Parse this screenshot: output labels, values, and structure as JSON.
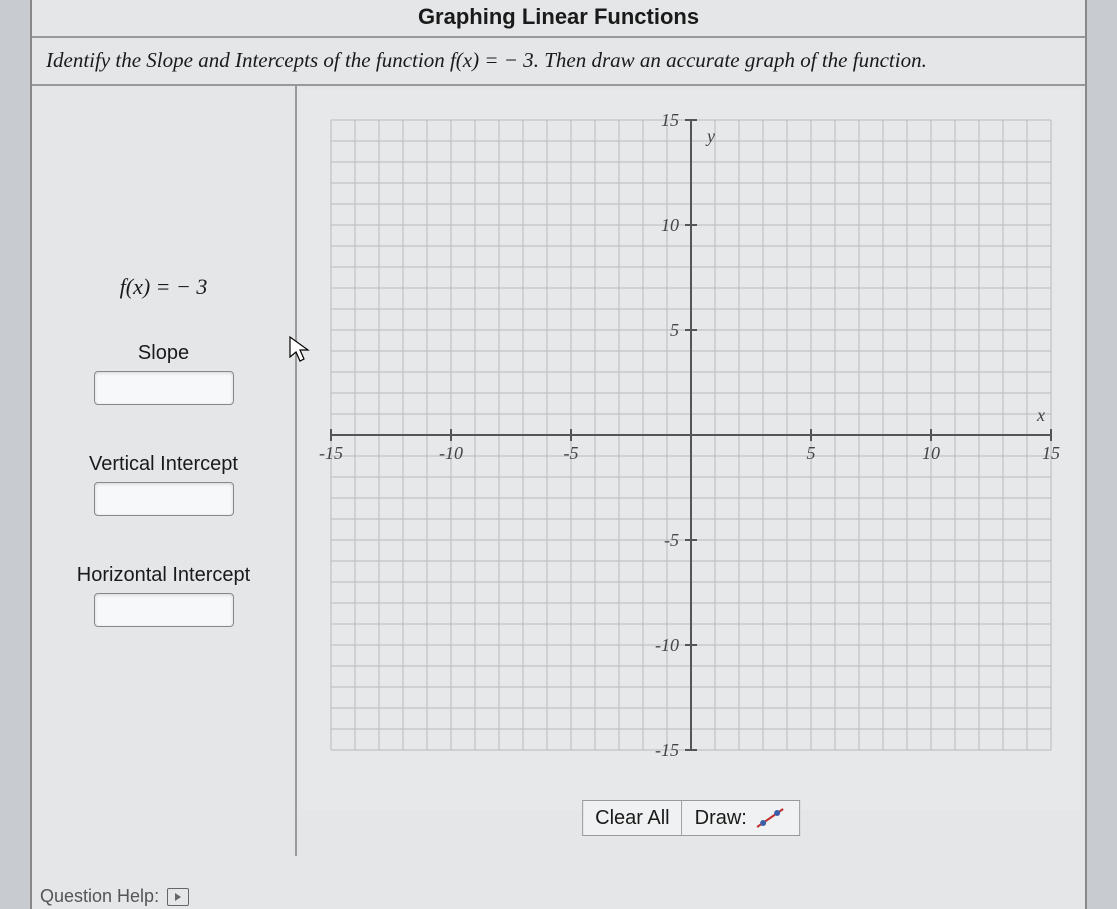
{
  "title": "Graphing Linear Functions",
  "instructions": {
    "prefix": "Identify the Slope and Intercepts of the function ",
    "func_lhs": "f(x) = ",
    "func_rhs": " − 3",
    "suffix": ". Then draw an accurate graph of the function."
  },
  "left": {
    "function_display": "f(x) = − 3",
    "slope_label": "Slope",
    "vint_label": "Vertical Intercept",
    "hint_label": "Horizontal Intercept"
  },
  "graph": {
    "xmin": -15,
    "xmax": 15,
    "ymin": -15,
    "ymax": 15,
    "tick_step": 5,
    "grid_step": 1,
    "grid_color": "#b8bcc0",
    "axis_color": "#555555",
    "tick_color": "#555555",
    "label_color": "#444444",
    "background": "#e6e8ea",
    "x_label": "x",
    "y_label": "y",
    "tick_values_x": [
      -15,
      -10,
      -5,
      5,
      10,
      15
    ],
    "tick_values_y": [
      15,
      10,
      5,
      -5,
      -10,
      -15
    ],
    "label_fontsize": 18,
    "label_font": "cursive-italic"
  },
  "controls": {
    "clear": "Clear All",
    "draw": "Draw:",
    "draw_icon": "line-with-points"
  },
  "footer": {
    "text": "Question Help:",
    "icon": "video"
  }
}
